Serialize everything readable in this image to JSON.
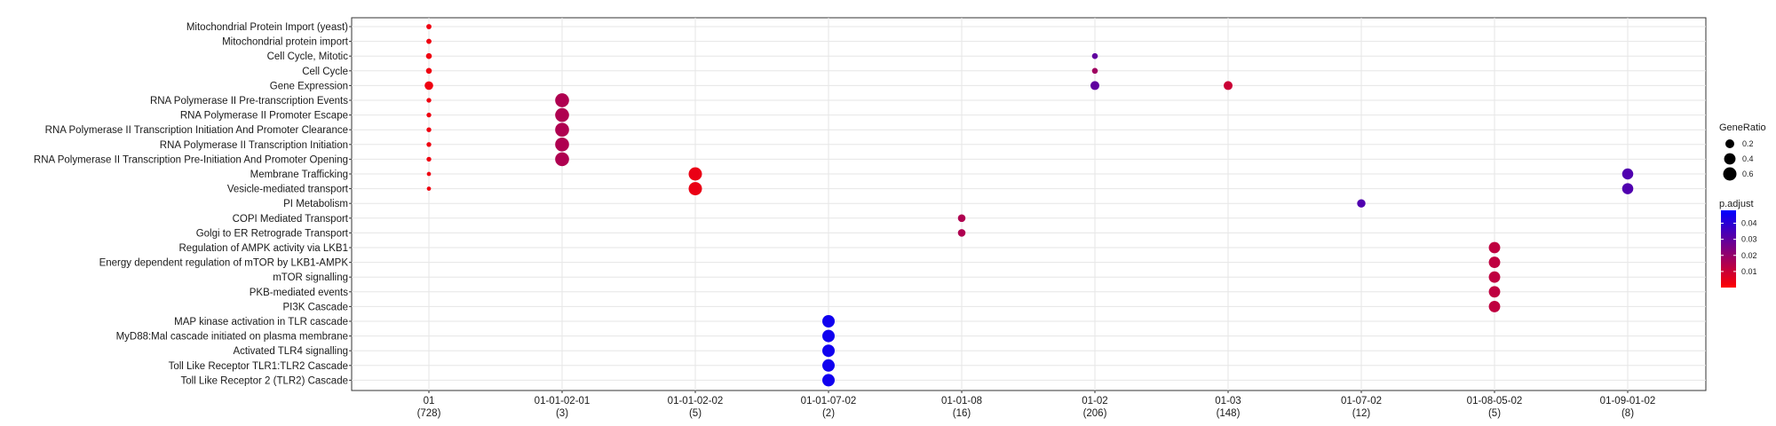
{
  "chart_data": {
    "type": "scatter",
    "title": "",
    "xlabel": "",
    "ylabel": "",
    "grid": true,
    "legend_position": "right",
    "categories_x": [
      {
        "top": "01",
        "bottom": "(728)"
      },
      {
        "top": "01-01-02-01",
        "bottom": "(3)"
      },
      {
        "top": "01-01-02-02",
        "bottom": "(5)"
      },
      {
        "top": "01-01-07-02",
        "bottom": "(2)"
      },
      {
        "top": "01-01-08",
        "bottom": "(16)"
      },
      {
        "top": "01-02",
        "bottom": "(206)"
      },
      {
        "top": "01-03",
        "bottom": "(148)"
      },
      {
        "top": "01-07-02",
        "bottom": "(12)"
      },
      {
        "top": "01-08-05-02",
        "bottom": "(5)"
      },
      {
        "top": "01-09-01-02",
        "bottom": "(8)"
      }
    ],
    "categories_y": [
      "Mitochondrial Protein Import (yeast)",
      "Mitochondrial protein import",
      "Cell Cycle, Mitotic",
      "Cell Cycle",
      "Gene Expression",
      "RNA Polymerase II Pre-transcription Events",
      "RNA Polymerase II Promoter Escape",
      "RNA Polymerase II Transcription Initiation And Promoter Clearance",
      "RNA Polymerase II Transcription Initiation",
      "RNA Polymerase II Transcription Pre-Initiation And Promoter Opening",
      "Membrane Trafficking",
      "Vesicle-mediated transport",
      "PI Metabolism",
      "COPI Mediated Transport",
      "Golgi to ER Retrograde Transport",
      "Regulation of AMPK activity via LKB1",
      "Energy dependent regulation of mTOR by LKB1-AMPK",
      "mTOR signalling",
      "PKB-mediated events",
      "PI3K Cascade",
      "MAP kinase activation in TLR cascade",
      "MyD88:Mal cascade initiated on plasma membrane",
      "Activated TLR4 signalling",
      "Toll Like Receptor TLR1:TLR2 Cascade",
      "Toll Like Receptor 2 (TLR2) Cascade"
    ],
    "points": [
      {
        "x": "01",
        "y": "Mitochondrial Protein Import (yeast)",
        "gene_ratio": 0.03,
        "p_adjust": 0.003
      },
      {
        "x": "01",
        "y": "Mitochondrial protein import",
        "gene_ratio": 0.03,
        "p_adjust": 0.003
      },
      {
        "x": "01",
        "y": "Cell Cycle, Mitotic",
        "gene_ratio": 0.05,
        "p_adjust": 0.003
      },
      {
        "x": "01",
        "y": "Cell Cycle",
        "gene_ratio": 0.05,
        "p_adjust": 0.003
      },
      {
        "x": "01",
        "y": "Gene Expression",
        "gene_ratio": 0.18,
        "p_adjust": 0.003
      },
      {
        "x": "01",
        "y": "RNA Polymerase II Pre-transcription Events",
        "gene_ratio": 0.02,
        "p_adjust": 0.003
      },
      {
        "x": "01",
        "y": "RNA Polymerase II Promoter Escape",
        "gene_ratio": 0.02,
        "p_adjust": 0.003
      },
      {
        "x": "01",
        "y": "RNA Polymerase II Transcription Initiation And Promoter Clearance",
        "gene_ratio": 0.02,
        "p_adjust": 0.003
      },
      {
        "x": "01",
        "y": "RNA Polymerase II Transcription Initiation",
        "gene_ratio": 0.02,
        "p_adjust": 0.003
      },
      {
        "x": "01",
        "y": "RNA Polymerase II Transcription Pre-Initiation And Promoter Opening",
        "gene_ratio": 0.02,
        "p_adjust": 0.003
      },
      {
        "x": "01",
        "y": "Membrane Trafficking",
        "gene_ratio": 0.01,
        "p_adjust": 0.003
      },
      {
        "x": "01",
        "y": "Vesicle-mediated transport",
        "gene_ratio": 0.01,
        "p_adjust": 0.003
      },
      {
        "x": "01-01-02-01",
        "y": "RNA Polymerase II Pre-transcription Events",
        "gene_ratio": 0.667,
        "p_adjust": 0.015
      },
      {
        "x": "01-01-02-01",
        "y": "RNA Polymerase II Promoter Escape",
        "gene_ratio": 0.667,
        "p_adjust": 0.015
      },
      {
        "x": "01-01-02-01",
        "y": "RNA Polymerase II Transcription Initiation And Promoter Clearance",
        "gene_ratio": 0.667,
        "p_adjust": 0.015
      },
      {
        "x": "01-01-02-01",
        "y": "RNA Polymerase II Transcription Initiation",
        "gene_ratio": 0.667,
        "p_adjust": 0.015
      },
      {
        "x": "01-01-02-01",
        "y": "RNA Polymerase II Transcription Pre-Initiation And Promoter Opening",
        "gene_ratio": 0.667,
        "p_adjust": 0.015
      },
      {
        "x": "01-01-02-02",
        "y": "Membrane Trafficking",
        "gene_ratio": 0.6,
        "p_adjust": 0.004
      },
      {
        "x": "01-01-02-02",
        "y": "Vesicle-mediated transport",
        "gene_ratio": 0.6,
        "p_adjust": 0.004
      },
      {
        "x": "01-01-07-02",
        "y": "MAP kinase activation in TLR cascade",
        "gene_ratio": 0.5,
        "p_adjust": 0.045
      },
      {
        "x": "01-01-07-02",
        "y": "MyD88:Mal cascade initiated on plasma membrane",
        "gene_ratio": 0.5,
        "p_adjust": 0.045
      },
      {
        "x": "01-01-07-02",
        "y": "Activated TLR4 signalling",
        "gene_ratio": 0.5,
        "p_adjust": 0.045
      },
      {
        "x": "01-01-07-02",
        "y": "Toll Like Receptor TLR1:TLR2 Cascade",
        "gene_ratio": 0.5,
        "p_adjust": 0.045
      },
      {
        "x": "01-01-07-02",
        "y": "Toll Like Receptor 2 (TLR2) Cascade",
        "gene_ratio": 0.5,
        "p_adjust": 0.045
      },
      {
        "x": "01-01-08",
        "y": "COPI Mediated Transport",
        "gene_ratio": 0.125,
        "p_adjust": 0.015
      },
      {
        "x": "01-01-08",
        "y": "Golgi to ER Retrograde Transport",
        "gene_ratio": 0.125,
        "p_adjust": 0.015
      },
      {
        "x": "01-02",
        "y": "Cell Cycle, Mitotic",
        "gene_ratio": 0.05,
        "p_adjust": 0.03
      },
      {
        "x": "01-02",
        "y": "Cell Cycle",
        "gene_ratio": 0.05,
        "p_adjust": 0.018
      },
      {
        "x": "01-02",
        "y": "Gene Expression",
        "gene_ratio": 0.2,
        "p_adjust": 0.03
      },
      {
        "x": "01-03",
        "y": "Gene Expression",
        "gene_ratio": 0.2,
        "p_adjust": 0.01
      },
      {
        "x": "01-07-02",
        "y": "PI Metabolism",
        "gene_ratio": 0.167,
        "p_adjust": 0.033
      },
      {
        "x": "01-08-05-02",
        "y": "Regulation of AMPK activity via LKB1",
        "gene_ratio": 0.4,
        "p_adjust": 0.012
      },
      {
        "x": "01-08-05-02",
        "y": "Energy dependent regulation of mTOR by LKB1-AMPK",
        "gene_ratio": 0.4,
        "p_adjust": 0.012
      },
      {
        "x": "01-08-05-02",
        "y": "mTOR signalling",
        "gene_ratio": 0.4,
        "p_adjust": 0.012
      },
      {
        "x": "01-08-05-02",
        "y": "PKB-mediated events",
        "gene_ratio": 0.4,
        "p_adjust": 0.012
      },
      {
        "x": "01-08-05-02",
        "y": "PI3K Cascade",
        "gene_ratio": 0.4,
        "p_adjust": 0.012
      },
      {
        "x": "01-09-01-02",
        "y": "Membrane Trafficking",
        "gene_ratio": 0.375,
        "p_adjust": 0.033
      },
      {
        "x": "01-09-01-02",
        "y": "Vesicle-mediated transport",
        "gene_ratio": 0.375,
        "p_adjust": 0.033
      }
    ],
    "size_legend": {
      "title": "GeneRatio",
      "values": [
        0.2,
        0.4,
        0.6
      ],
      "labels": [
        "0.2",
        "0.4",
        "0.6"
      ]
    },
    "color_legend": {
      "title": "p.adjust",
      "range": [
        0.0,
        0.048
      ],
      "ticks": [
        0.01,
        0.02,
        0.03,
        0.04
      ],
      "tick_labels": [
        "0.01",
        "0.02",
        "0.03",
        "0.04"
      ],
      "low_color": "#ff0000",
      "high_color": "#0000ff"
    }
  }
}
